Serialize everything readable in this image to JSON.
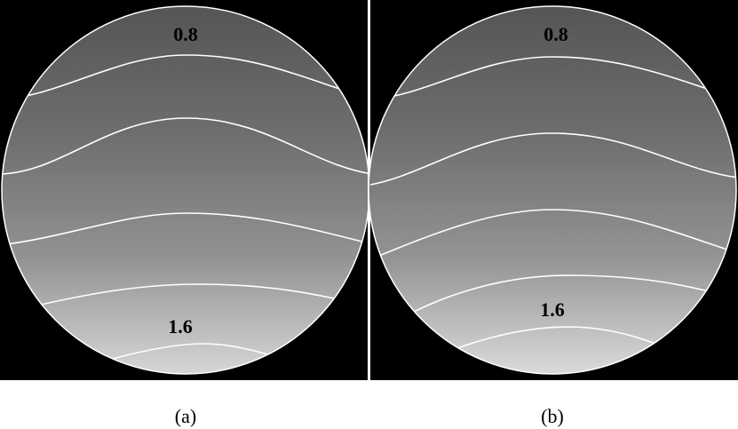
{
  "chart_data": [
    {
      "type": "heatmap",
      "panel_label": "(a)",
      "contour_labels": [
        "0.8",
        "1.6"
      ],
      "gradient_stops": [
        "#555555",
        "#6e6e6e",
        "#929292",
        "#d6d6d6"
      ],
      "contour_color": "#ffffff",
      "background_color": "#000000"
    },
    {
      "type": "heatmap",
      "panel_label": "(b)",
      "contour_labels": [
        "0.8",
        "1.6"
      ],
      "gradient_stops": [
        "#555555",
        "#6e6e6e",
        "#939393",
        "#dadada"
      ],
      "contour_color": "#ffffff",
      "background_color": "#000000"
    }
  ],
  "divider_color": "#ffffff"
}
